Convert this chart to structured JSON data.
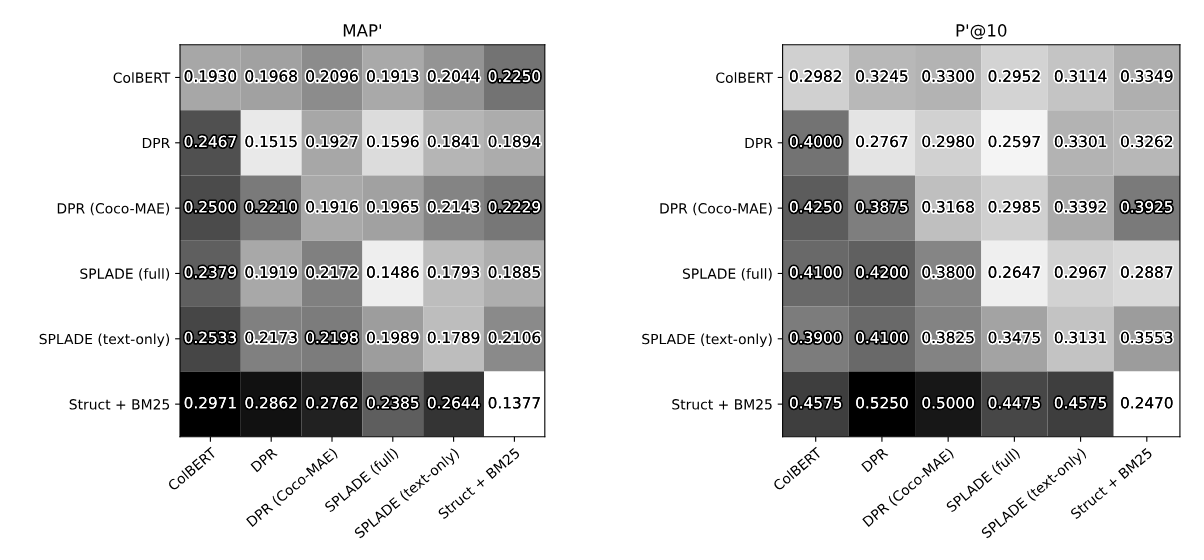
{
  "chart_data": [
    {
      "type": "heatmap",
      "title": "MAP'",
      "categories": [
        "ColBERT",
        "DPR",
        "DPR (Coco-MAE)",
        "SPLADE (full)",
        "SPLADE (text-only)",
        "Struct + BM25"
      ],
      "y_categories": [
        "ColBERT",
        "DPR",
        "DPR (Coco-MAE)",
        "SPLADE (full)",
        "SPLADE (text-only)",
        "Struct + BM25"
      ],
      "cells": [
        [
          0.193,
          0.1968,
          0.2096,
          0.1913,
          0.2044,
          0.225
        ],
        [
          0.2467,
          0.1515,
          0.1927,
          0.1596,
          0.1841,
          0.1894
        ],
        [
          0.25,
          0.221,
          0.1916,
          0.1965,
          0.2143,
          0.2229
        ],
        [
          0.2379,
          0.1919,
          0.2172,
          0.1486,
          0.1793,
          0.1885
        ],
        [
          0.2533,
          0.2173,
          0.2198,
          0.1989,
          0.1789,
          0.2106
        ],
        [
          0.2971,
          0.2862,
          0.2762,
          0.2385,
          0.2644,
          0.1377
        ]
      ],
      "cell_labels": [
        [
          "0.1930",
          "0.1968",
          "0.2096",
          "0.1913",
          "0.2044",
          "0.2250"
        ],
        [
          "0.2467",
          "0.1515",
          "0.1927",
          "0.1596",
          "0.1841",
          "0.1894"
        ],
        [
          "0.2500",
          "0.2210",
          "0.1916",
          "0.1965",
          "0.2143",
          "0.2229"
        ],
        [
          "0.2379",
          "0.1919",
          "0.2172",
          "0.1486",
          "0.1793",
          "0.1885"
        ],
        [
          "0.2533",
          "0.2173",
          "0.2198",
          "0.1989",
          "0.1789",
          "0.2106"
        ],
        [
          "0.2971",
          "0.2862",
          "0.2762",
          "0.2385",
          "0.2644",
          "0.1377"
        ]
      ]
    },
    {
      "type": "heatmap",
      "title": "P'@10",
      "categories": [
        "ColBERT",
        "DPR",
        "DPR (Coco-MAE)",
        "SPLADE (full)",
        "SPLADE (text-only)",
        "Struct + BM25"
      ],
      "y_categories": [
        "ColBERT",
        "DPR",
        "DPR (Coco-MAE)",
        "SPLADE (full)",
        "SPLADE (text-only)",
        "Struct + BM25"
      ],
      "cells": [
        [
          0.2982,
          0.3245,
          0.33,
          0.2952,
          0.3114,
          0.3349
        ],
        [
          0.4,
          0.2767,
          0.298,
          0.2597,
          0.3301,
          0.3262
        ],
        [
          0.425,
          0.3875,
          0.3168,
          0.2985,
          0.3392,
          0.3925
        ],
        [
          0.41,
          0.42,
          0.38,
          0.2647,
          0.2967,
          0.2887
        ],
        [
          0.39,
          0.41,
          0.3825,
          0.3475,
          0.3131,
          0.3553
        ],
        [
          0.4575,
          0.525,
          0.5,
          0.4475,
          0.4575,
          0.247
        ]
      ],
      "cell_labels": [
        [
          "0.2982",
          "0.3245",
          "0.3300",
          "0.2952",
          "0.3114",
          "0.3349"
        ],
        [
          "0.4000",
          "0.2767",
          "0.2980",
          "0.2597",
          "0.3301",
          "0.3262"
        ],
        [
          "0.4250",
          "0.3875",
          "0.3168",
          "0.2985",
          "0.3392",
          "0.3925"
        ],
        [
          "0.4100",
          "0.4200",
          "0.3800",
          "0.2647",
          "0.2967",
          "0.2887"
        ],
        [
          "0.3900",
          "0.4100",
          "0.3825",
          "0.3475",
          "0.3131",
          "0.3553"
        ],
        [
          "0.4575",
          "0.5250",
          "0.5000",
          "0.4475",
          "0.4575",
          "0.2470"
        ]
      ]
    }
  ]
}
